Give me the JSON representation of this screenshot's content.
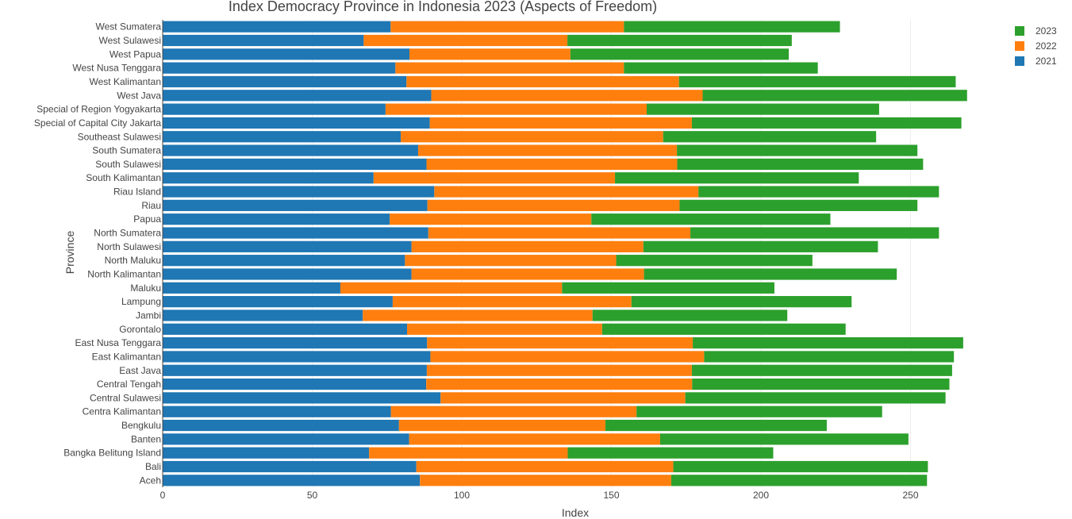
{
  "chart_data": {
    "type": "bar",
    "orientation": "horizontal",
    "barmode": "stack",
    "title": "Index Democracy Province in Indonesia 2023 (Aspects of Freedom)",
    "xlabel": "Index",
    "ylabel": "Province",
    "xlim": [
      0,
      274
    ],
    "xticks": [
      0,
      50,
      100,
      150,
      200,
      250
    ],
    "grid": true,
    "legend_position": "top-right",
    "categories": [
      "Aceh",
      "Bali",
      "Bangka Belitung Island",
      "Banten",
      "Bengkulu",
      "Centra Kalimantan",
      "Central Sulawesi",
      "Central Tengah",
      "East Java",
      "East Kalimantan",
      "East Nusa Tenggara",
      "Gorontalo",
      "Jambi",
      "Lampung",
      "Maluku",
      "North Kalimantan",
      "North Maluku",
      "North Sulawesi",
      "North Sumatera",
      "Papua",
      "Riau",
      "Riau Island",
      "South Kalimantan",
      "South Sulawesi",
      "South Sumatera",
      "Southeast Sulawesi",
      "Special of Capital City Jakarta",
      "Special of Region Yogyakarta",
      "West Java",
      "West Kalimantan",
      "West Nusa Tenggara",
      "West Papua",
      "West Sulawesi",
      "West Sumatera"
    ],
    "series": [
      {
        "name": "2021",
        "color": "#1f77b4",
        "values": [
          86.0,
          84.8,
          69.0,
          82.4,
          79.0,
          76.3,
          92.9,
          88.1,
          88.3,
          89.5,
          88.4,
          81.7,
          66.9,
          76.9,
          59.4,
          83.2,
          81.0,
          83.2,
          88.8,
          75.9,
          88.5,
          90.8,
          70.5,
          88.2,
          85.4,
          79.6,
          89.3,
          74.5,
          89.8,
          81.5,
          77.8,
          82.5,
          67.2,
          76.2
        ]
      },
      {
        "name": "2022",
        "color": "#ff7f0e",
        "values": [
          84.0,
          85.9,
          66.4,
          83.9,
          69.0,
          82.1,
          81.8,
          88.9,
          88.6,
          91.5,
          88.8,
          65.2,
          76.8,
          79.8,
          74.1,
          77.7,
          70.6,
          77.5,
          87.6,
          67.4,
          84.3,
          88.3,
          80.7,
          83.8,
          86.5,
          87.7,
          87.6,
          87.3,
          90.7,
          91.1,
          76.4,
          53.8,
          68.1,
          78.0
        ]
      },
      {
        "name": "2023",
        "color": "#2ca02c",
        "values": [
          85.5,
          85.1,
          68.7,
          83.0,
          74.0,
          82.1,
          87.0,
          86.0,
          87.0,
          83.5,
          90.4,
          81.4,
          65.1,
          73.6,
          71.0,
          84.5,
          65.6,
          78.4,
          83.1,
          79.9,
          79.5,
          80.4,
          81.5,
          82.2,
          80.4,
          71.2,
          90.1,
          77.7,
          88.4,
          92.5,
          64.8,
          73.0,
          75.0,
          72.2
        ]
      }
    ]
  }
}
